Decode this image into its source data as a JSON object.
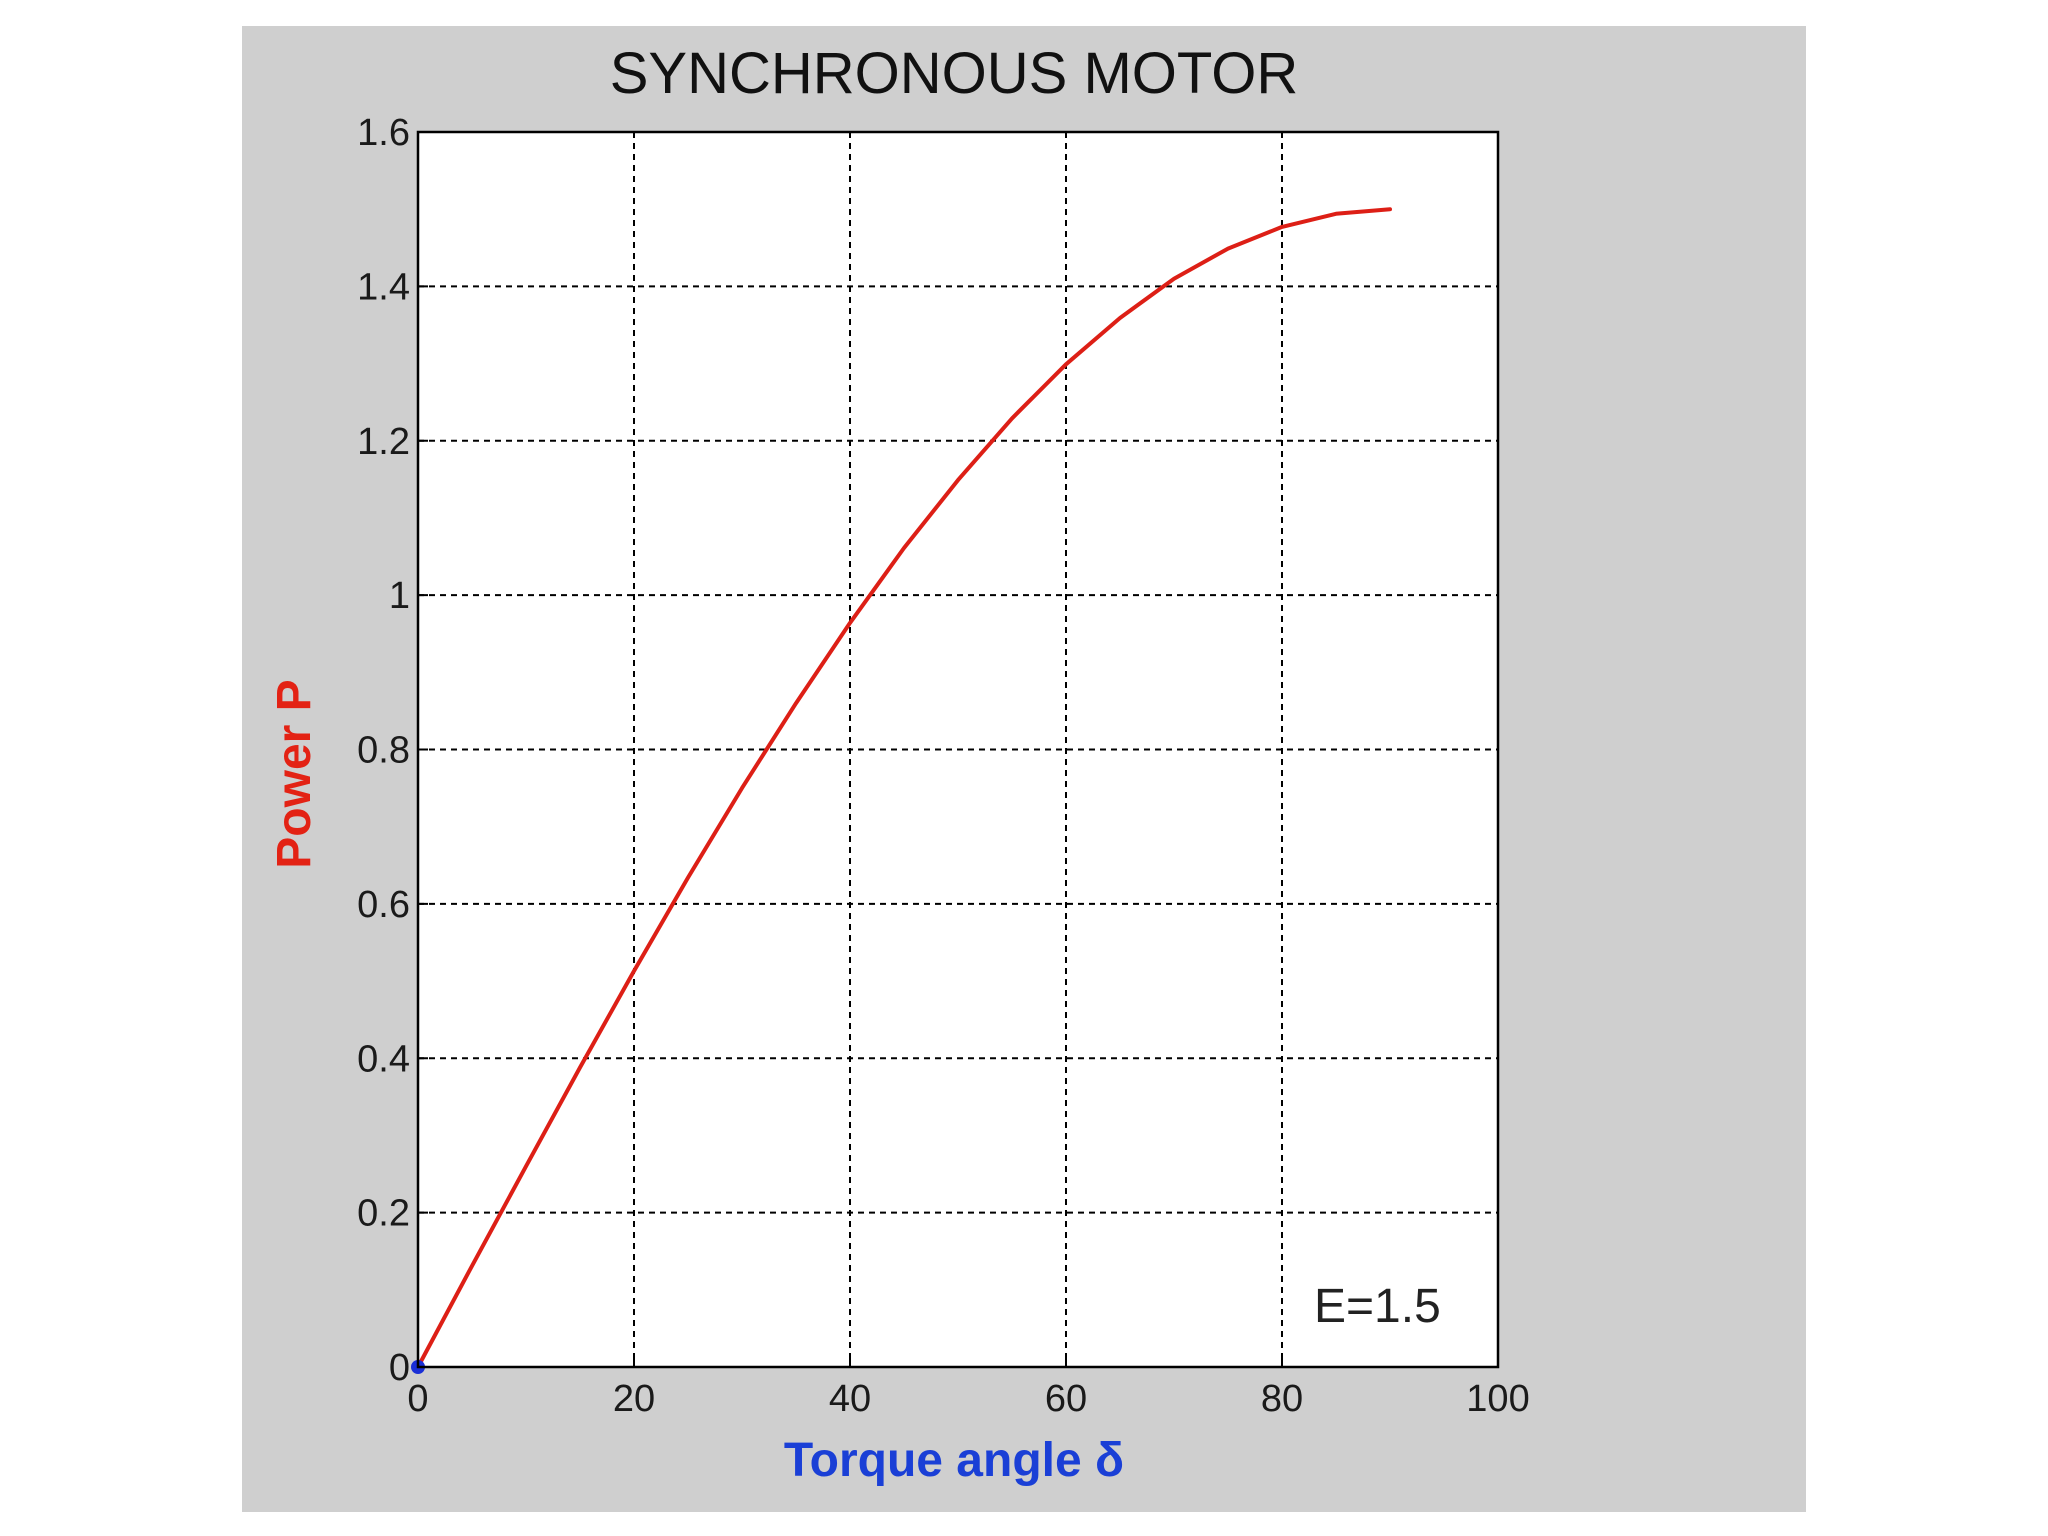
{
  "chart_data": {
    "type": "line",
    "title": "SYNCHRONOUS MOTOR",
    "xlabel": "Torque angle δ",
    "ylabel": "Power P",
    "xlim": [
      0,
      100
    ],
    "ylim": [
      0,
      1.6
    ],
    "xticks": [
      0,
      20,
      40,
      60,
      80,
      100
    ],
    "xtick_labels": [
      "0",
      "20",
      "40",
      "60",
      "80",
      "100"
    ],
    "yticks": [
      0,
      0.2,
      0.4,
      0.6,
      0.8,
      1,
      1.2,
      1.4,
      1.6
    ],
    "ytick_labels": [
      "0",
      "0.2",
      "0.4",
      "0.6",
      "0.8",
      "1",
      "1.2",
      "1.4",
      "1.6"
    ],
    "grid": true,
    "annotation": "E=1.5",
    "series": [
      {
        "color": "#dd1f16",
        "x": [
          0,
          5,
          10,
          15,
          20,
          25,
          30,
          35,
          40,
          45,
          50,
          55,
          60,
          65,
          70,
          75,
          80,
          85,
          90
        ],
        "y": [
          0,
          0.131,
          0.26,
          0.388,
          0.513,
          0.634,
          0.75,
          0.86,
          0.964,
          1.061,
          1.149,
          1.229,
          1.299,
          1.359,
          1.41,
          1.449,
          1.477,
          1.494,
          1.5
        ]
      }
    ],
    "marker": {
      "x": 0,
      "y": 0,
      "color": "#1a2fd6"
    },
    "colors": {
      "panel": "#cfcfcf",
      "plot_background": "#ffffff",
      "title": "#111111",
      "xlabel": "#1a3fd6",
      "ylabel": "#e32214",
      "grid": "#000000"
    }
  }
}
